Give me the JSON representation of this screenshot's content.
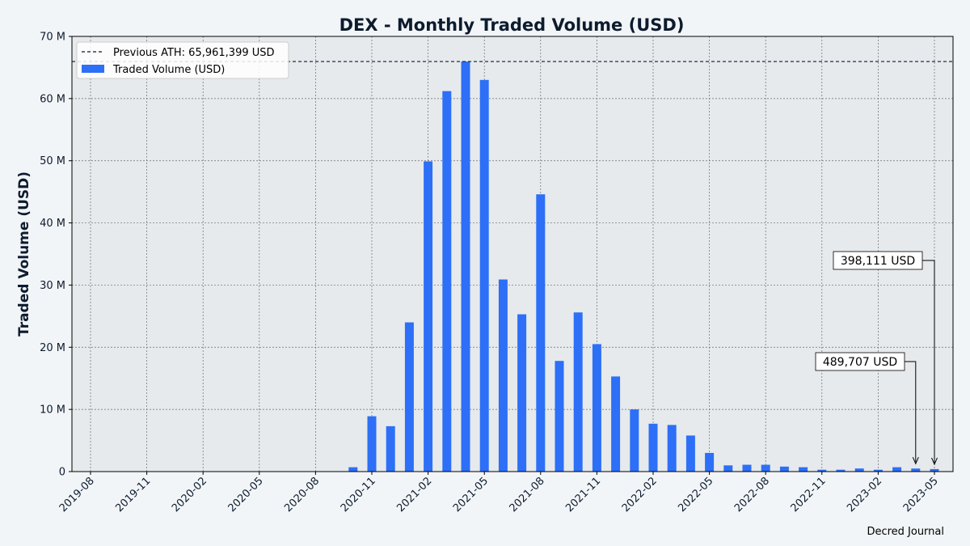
{
  "chart_data": {
    "type": "bar",
    "title": "DEX - Monthly Traded Volume (USD)",
    "xlabel": "",
    "ylabel": "Traded Volume (USD)",
    "ylim": [
      0,
      70000000
    ],
    "yticks": [
      0,
      10000000,
      20000000,
      30000000,
      40000000,
      50000000,
      60000000,
      70000000
    ],
    "ytick_labels": [
      "0",
      "10 M",
      "20 M",
      "30 M",
      "40 M",
      "50 M",
      "60 M",
      "70 M"
    ],
    "xtick_labels": [
      "2019-08",
      "2019-11",
      "2020-02",
      "2020-05",
      "2020-08",
      "2020-11",
      "2021-02",
      "2021-05",
      "2021-08",
      "2021-11",
      "2022-02",
      "2022-05",
      "2022-08",
      "2022-11",
      "2023-02",
      "2023-05"
    ],
    "x_start": "2019-08",
    "categories": [
      "2019-08",
      "2019-09",
      "2019-10",
      "2019-11",
      "2019-12",
      "2020-01",
      "2020-02",
      "2020-03",
      "2020-04",
      "2020-05",
      "2020-06",
      "2020-07",
      "2020-08",
      "2020-09",
      "2020-10",
      "2020-11",
      "2020-12",
      "2021-01",
      "2021-02",
      "2021-03",
      "2021-04",
      "2021-05",
      "2021-06",
      "2021-07",
      "2021-08",
      "2021-09",
      "2021-10",
      "2021-11",
      "2021-12",
      "2022-01",
      "2022-02",
      "2022-03",
      "2022-04",
      "2022-05",
      "2022-06",
      "2022-07",
      "2022-08",
      "2022-09",
      "2022-10",
      "2022-11",
      "2022-12",
      "2023-01",
      "2023-02",
      "2023-03",
      "2023-04",
      "2023-05"
    ],
    "series": [
      {
        "name": "Traded Volume (USD)",
        "color": "#2d6ff7",
        "values": [
          0,
          0,
          0,
          0,
          0,
          0,
          0,
          0,
          0,
          0,
          0,
          0,
          0,
          0,
          700000,
          8900000,
          7300000,
          24000000,
          49900000,
          61200000,
          65961399,
          63000000,
          30900000,
          25300000,
          44600000,
          17800000,
          25600000,
          20500000,
          15300000,
          10000000,
          7700000,
          7500000,
          5800000,
          3000000,
          1000000,
          1100000,
          1100000,
          800000,
          700000,
          300000,
          300000,
          500000,
          300000,
          700000,
          489707,
          398111
        ]
      }
    ],
    "reference_line": {
      "label": "Previous ATH: 65,961,399 USD",
      "value": 65961399,
      "color": "#0d1b2e",
      "style": "dashed"
    },
    "legend": {
      "position": "top-left",
      "entries": [
        "Previous ATH: 65,961,399 USD",
        "Traded Volume (USD)"
      ]
    },
    "annotations": [
      {
        "text": "489,707 USD",
        "category": "2023-04",
        "value": 489707
      },
      {
        "text": "398,111 USD",
        "category": "2023-05",
        "value": 398111
      }
    ],
    "grid": true
  },
  "credit": "Decred Journal",
  "colors": {
    "background": "#f2f5f7",
    "plot_area": "#e6eaed",
    "bar": "#2d6ff7",
    "text": "#0d1b2e"
  }
}
